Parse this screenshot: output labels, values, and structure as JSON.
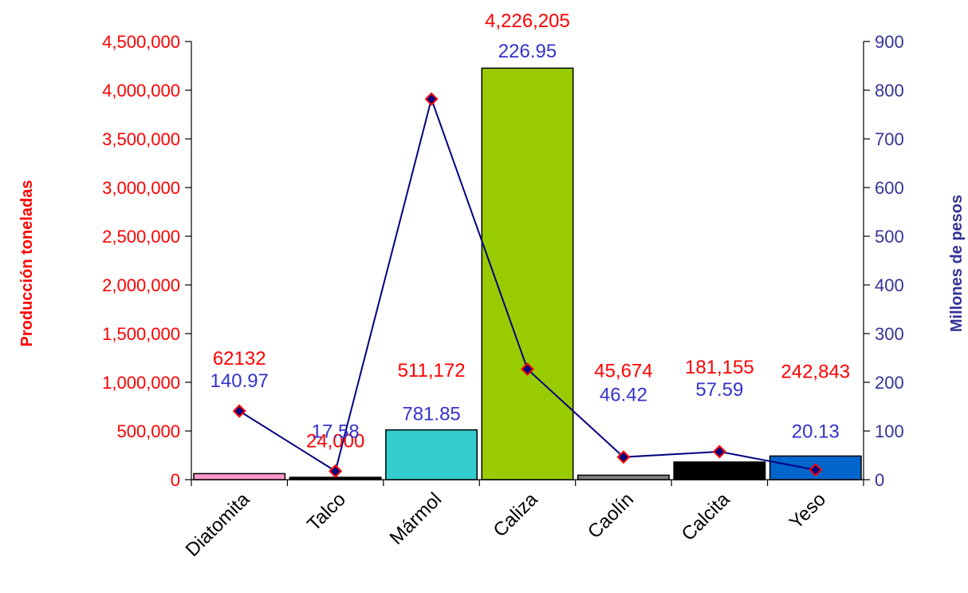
{
  "chart_data": {
    "type": "bar",
    "title": "",
    "categories": [
      "Diatomita",
      "Talco",
      "Mármol",
      "Caliza",
      "Caolín",
      "Calcita",
      "Yeso"
    ],
    "ylabel": "Producción toneladas",
    "y2label": "Millones de pesos",
    "ylim": [
      0,
      4500000
    ],
    "y2lim": [
      0,
      900
    ],
    "yticks": [
      "0",
      "500,000",
      "1,000,000",
      "1,500,000",
      "2,000,000",
      "2,500,000",
      "3,000,000",
      "3,500,000",
      "4,000,000",
      "4,500,000"
    ],
    "y2ticks": [
      "0",
      "100",
      "200",
      "300",
      "400",
      "500",
      "600",
      "700",
      "800",
      "900"
    ],
    "grid": false,
    "series": [
      {
        "type": "bar",
        "axis": "left",
        "values": [
          62132,
          24000,
          511172,
          4226205,
          45674,
          181155,
          242843
        ],
        "colors": [
          "#ff99cc",
          "#000000",
          "#33cccc",
          "#99cc00",
          "#808080",
          "#000000",
          "#0066cc"
        ]
      },
      {
        "type": "line",
        "axis": "right",
        "values": [
          140.97,
          17.58,
          781.85,
          226.95,
          46.42,
          57.59,
          20.13
        ],
        "color": "#000080",
        "marker_fill": "#000080",
        "marker_edge": "#ff0000"
      }
    ],
    "labels_production": [
      "62132",
      "24,000",
      "511,172",
      "4,226,205",
      "45,674",
      "181,155",
      "242,843"
    ],
    "labels_value": [
      "140.97",
      "17.58",
      "781.85",
      "226.95",
      "46.42",
      "57.59",
      "20.13"
    ],
    "colors": {
      "left_axis": "#ff0000",
      "right_axis": "#333399",
      "production_labels": "#ff0000",
      "value_labels": "#3333cc"
    }
  }
}
